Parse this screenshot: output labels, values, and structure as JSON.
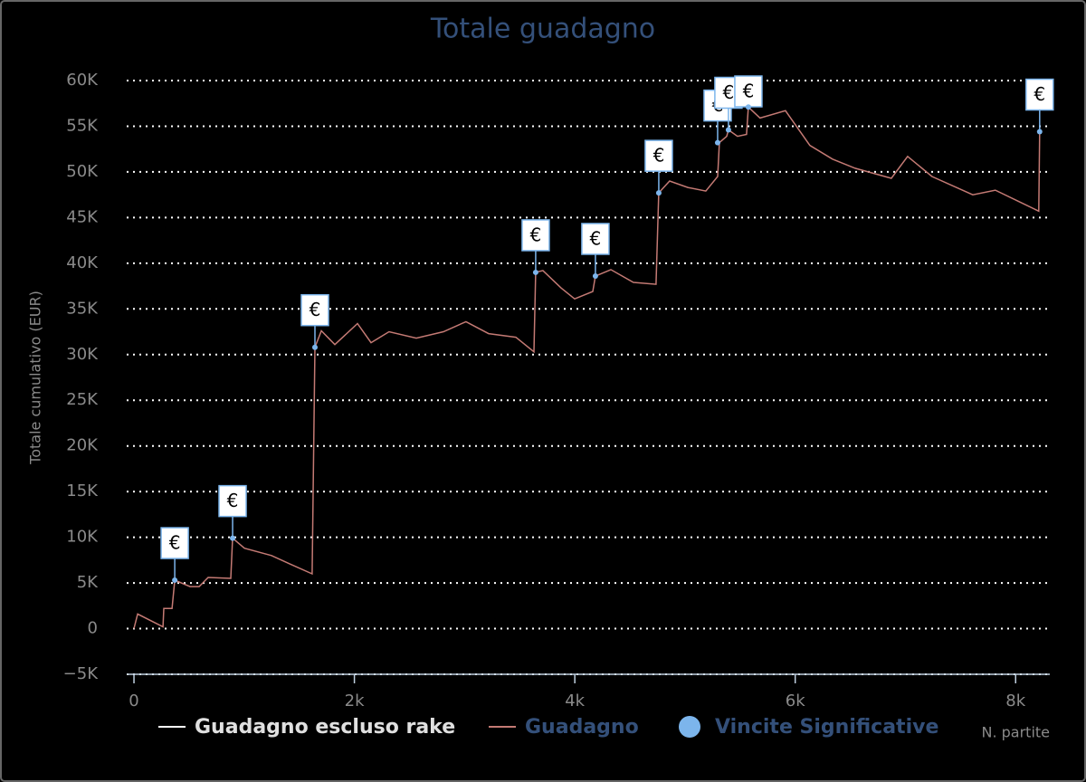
{
  "chart_data": {
    "type": "line",
    "title": "Totale guadagno",
    "y_axis_label": "Totale cumulativo (EUR)",
    "x_axis_label": "N. partite",
    "xlim": [
      -66,
      8310
    ],
    "ylim": [
      -5000,
      60000
    ],
    "xticks": [
      0,
      {
        "value": 2000,
        "label": "2k"
      },
      {
        "value": 4000,
        "label": "4k"
      },
      {
        "value": 6000,
        "label": "6k"
      },
      {
        "value": 8000,
        "label": "8k"
      }
    ],
    "yticks": [
      {
        "value": -5000,
        "label": "−5K"
      },
      0,
      {
        "value": 5000,
        "label": "5K"
      },
      {
        "value": 10000,
        "label": "10K"
      },
      {
        "value": 15000,
        "label": "15K"
      },
      {
        "value": 20000,
        "label": "20K"
      },
      {
        "value": 25000,
        "label": "25K"
      },
      {
        "value": 30000,
        "label": "30K"
      },
      {
        "value": 35000,
        "label": "35K"
      },
      {
        "value": 40000,
        "label": "40K"
      },
      {
        "value": 45000,
        "label": "45K"
      },
      {
        "value": 50000,
        "label": "50K"
      },
      {
        "value": 55000,
        "label": "55K"
      },
      {
        "value": 60000,
        "label": "60K"
      }
    ],
    "grid": true,
    "flag_label": "€",
    "series": [
      {
        "name": "Guadagno escluso rake",
        "color": "#ffffff"
      },
      {
        "name": "Guadagno",
        "color": "#c47a74",
        "x": [
          0,
          33,
          263,
          271,
          345,
          370,
          509,
          591,
          673,
          878,
          895,
          1002,
          1248,
          1412,
          1617,
          1642,
          1700,
          1823,
          2028,
          2151,
          2315,
          2562,
          2808,
          3013,
          3218,
          3465,
          3629,
          3645,
          3711,
          3875,
          3998,
          4163,
          4187,
          4327,
          4532,
          4737,
          4762,
          4860,
          5025,
          5189,
          5296,
          5312,
          5378,
          5394,
          5476,
          5558,
          5575,
          5681,
          5911,
          6133,
          6338,
          6544,
          6872,
          7020,
          7241,
          7611,
          7816,
          8021,
          8210,
          8218
        ],
        "values": [
          0,
          1600,
          200,
          2200,
          2200,
          5300,
          4600,
          4600,
          5600,
          5500,
          9900,
          8800,
          8000,
          7100,
          6000,
          30800,
          32600,
          31100,
          33400,
          31300,
          32500,
          31800,
          32500,
          33600,
          32300,
          31900,
          30300,
          39000,
          39200,
          37300,
          36100,
          36900,
          38600,
          39300,
          37900,
          37700,
          47700,
          49000,
          48300,
          47900,
          49500,
          53200,
          53900,
          54600,
          53900,
          54100,
          57100,
          55900,
          56700,
          52900,
          51400,
          50400,
          49300,
          51700,
          49500,
          47500,
          48000,
          46800,
          45700,
          54400
        ]
      },
      {
        "name": "Vincite Significative",
        "color": "#7cb5ec",
        "x": [
          370,
          895,
          1642,
          3645,
          4187,
          4762,
          5296,
          5394,
          5575,
          8218
        ],
        "values": [
          5300,
          9900,
          30800,
          39000,
          38600,
          47700,
          53200,
          54600,
          57100,
          54400
        ]
      }
    ]
  }
}
